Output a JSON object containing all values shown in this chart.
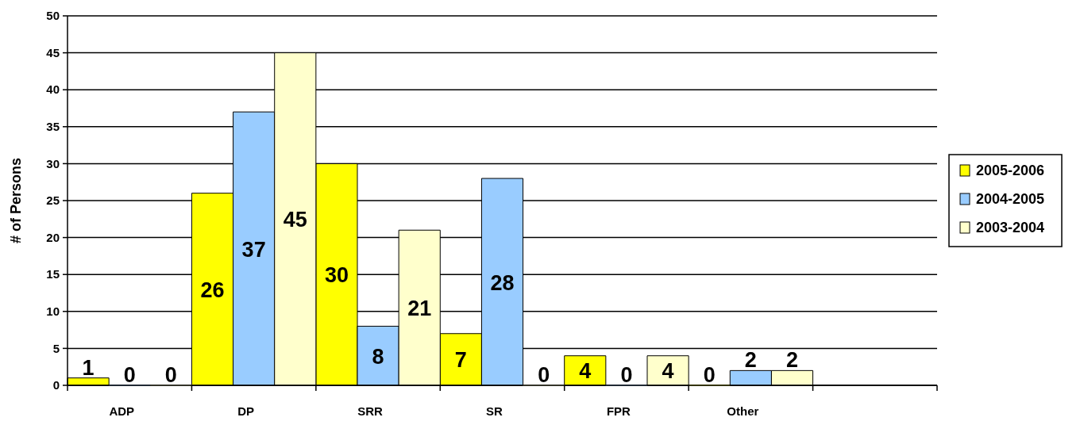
{
  "chart_data": {
    "type": "bar",
    "ylabel": "# of Persons",
    "categories": [
      "ADP",
      "DP",
      "SRR",
      "SR",
      "FPR",
      "Other",
      null
    ],
    "series": [
      {
        "name": "2005-2006",
        "color": "#ffff00",
        "values": [
          1,
          26,
          30,
          7,
          4,
          0,
          null
        ]
      },
      {
        "name": "2004-2005",
        "color": "#99ccff",
        "values": [
          0,
          37,
          8,
          28,
          0,
          2,
          null
        ]
      },
      {
        "name": "2003-2004",
        "color": "#ffffcc",
        "values": [
          0,
          45,
          21,
          0,
          4,
          2,
          null
        ]
      }
    ],
    "ylim": [
      0,
      50
    ],
    "yticks": [
      0,
      5,
      10,
      15,
      20,
      25,
      30,
      35,
      40,
      45,
      50
    ],
    "grid": "y",
    "legend": "right",
    "data_labels": true
  }
}
